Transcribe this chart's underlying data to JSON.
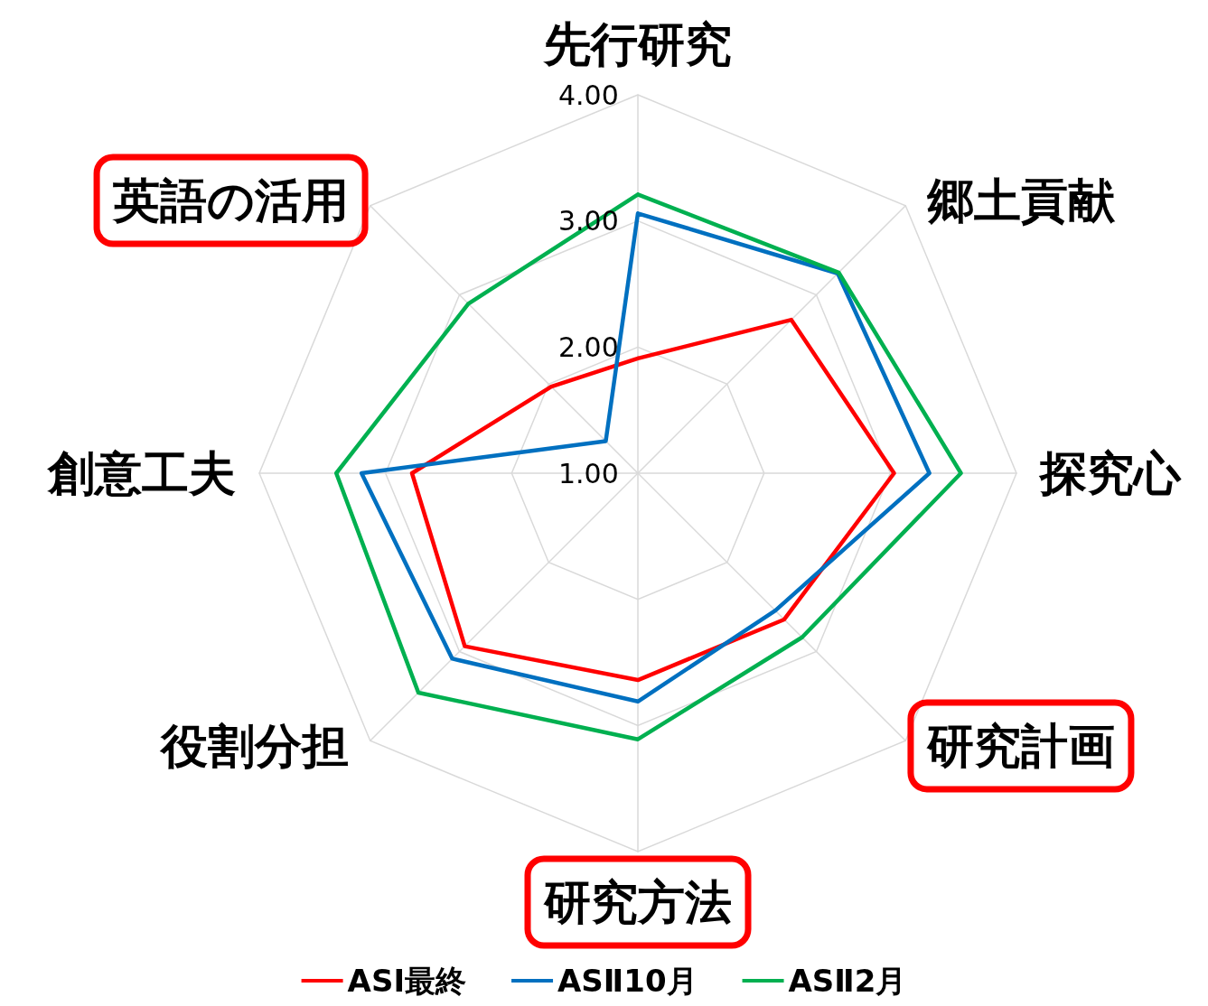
{
  "chart_data": {
    "type": "radar",
    "categories": [
      "先行研究",
      "郷土貢献",
      "探究心",
      "研究計画",
      "研究方法",
      "役割分担",
      "創意工夫",
      "英語の活用"
    ],
    "ylim": [
      1,
      4
    ],
    "yticks": [
      {
        "value": 1,
        "label": "1.00"
      },
      {
        "value": 2,
        "label": "2.00"
      },
      {
        "value": 3,
        "label": "3.00"
      },
      {
        "value": 4,
        "label": "4.00"
      }
    ],
    "grid": true,
    "legend": "bottom",
    "marker": "none",
    "line_style": "solid",
    "series": [
      {
        "name": "ASⅠ最終",
        "color": "#ff0000",
        "values": [
          1.91,
          2.72,
          3.03,
          2.64,
          2.64,
          2.94,
          2.79,
          1.97
        ]
      },
      {
        "name": "ASⅡ10月",
        "color": "#0070c0",
        "values": [
          3.06,
          3.24,
          3.31,
          2.54,
          2.81,
          3.08,
          3.19,
          1.36
        ]
      },
      {
        "name": "ASⅡ2月",
        "color": "#00b050",
        "values": [
          3.21,
          3.25,
          3.56,
          2.84,
          3.11,
          3.46,
          3.39,
          2.9
        ]
      }
    ]
  }
}
